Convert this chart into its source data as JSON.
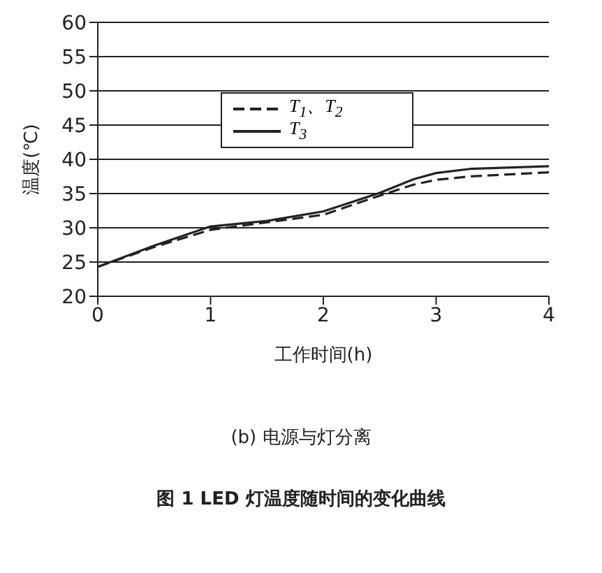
{
  "chart_data": {
    "type": "line",
    "xlabel": "工作时间(h)",
    "ylabel": "温度(℃)",
    "annotations": [
      "(b) 电源与灯分离",
      "图 1   LED 灯温度随时间的变化曲线"
    ],
    "xlim": [
      0,
      4
    ],
    "xticks": [
      0,
      1,
      2,
      3,
      4
    ],
    "ylim": [
      20,
      60
    ],
    "yticks": [
      20,
      25,
      30,
      35,
      40,
      45,
      50,
      55,
      60
    ],
    "grid": "y",
    "legend": "top left",
    "marker": "none",
    "series": [
      {
        "name": "T$_{1}$、T$_{2}$",
        "color": "#222222",
        "line_style": "dashed",
        "x": [
          0,
          0.5,
          1,
          1.5,
          2,
          2.5,
          2.8,
          3,
          3.3,
          4
        ],
        "values": [
          24.3,
          27.2,
          29.7,
          30.8,
          31.9,
          34.7,
          36.3,
          37.0,
          37.5,
          38.1
        ]
      },
      {
        "name": "T$_{3}$",
        "color": "#222222",
        "line_style": "solid",
        "x": [
          0,
          0.5,
          1,
          1.5,
          2,
          2.5,
          2.8,
          3,
          3.3,
          4
        ],
        "values": [
          24.3,
          27.4,
          30.2,
          31.0,
          32.4,
          35.1,
          37.1,
          38.0,
          38.6,
          39.0
        ]
      }
    ]
  }
}
